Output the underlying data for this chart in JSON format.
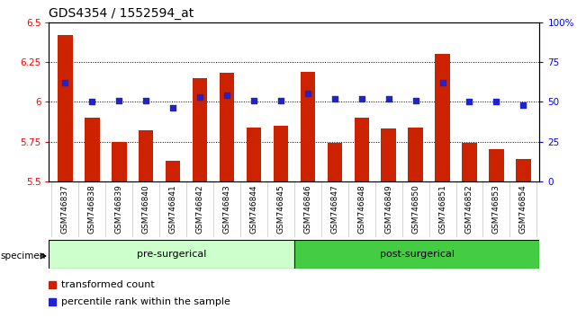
{
  "title": "GDS4354 / 1552594_at",
  "categories": [
    "GSM746837",
    "GSM746838",
    "GSM746839",
    "GSM746840",
    "GSM746841",
    "GSM746842",
    "GSM746843",
    "GSM746844",
    "GSM746845",
    "GSM746846",
    "GSM746847",
    "GSM746848",
    "GSM746849",
    "GSM746850",
    "GSM746851",
    "GSM746852",
    "GSM746853",
    "GSM746854"
  ],
  "bar_values": [
    6.42,
    5.9,
    5.75,
    5.82,
    5.63,
    6.15,
    6.18,
    5.84,
    5.85,
    6.19,
    5.74,
    5.9,
    5.83,
    5.84,
    6.3,
    5.74,
    5.7,
    5.64
  ],
  "percentile_values": [
    62,
    50,
    51,
    51,
    46,
    53,
    54,
    51,
    51,
    55,
    52,
    52,
    52,
    51,
    62,
    50,
    50,
    48
  ],
  "ylim": [
    5.5,
    6.5
  ],
  "yticks": [
    5.5,
    5.75,
    6.0,
    6.25,
    6.5
  ],
  "ytick_labels": [
    "5.5",
    "5.75",
    "6",
    "6.25",
    "6.5"
  ],
  "y2lim": [
    0,
    100
  ],
  "y2ticks": [
    0,
    25,
    50,
    75,
    100
  ],
  "y2tick_labels": [
    "0",
    "25",
    "50",
    "75",
    "100%"
  ],
  "bar_color": "#CC2200",
  "percentile_color": "#2222CC",
  "pre_surgical_count": 9,
  "post_surgical_count": 9,
  "pre_label": "pre-surgerical",
  "post_label": "post-surgerical",
  "pre_color": "#CCFFCC",
  "post_color": "#44CC44",
  "specimen_label": "specimen",
  "legend_bar": "transformed count",
  "legend_pct": "percentile rank within the sample",
  "title_fontsize": 10,
  "axis_fontsize": 7.5,
  "group_label_fontsize": 8,
  "legend_fontsize": 8
}
